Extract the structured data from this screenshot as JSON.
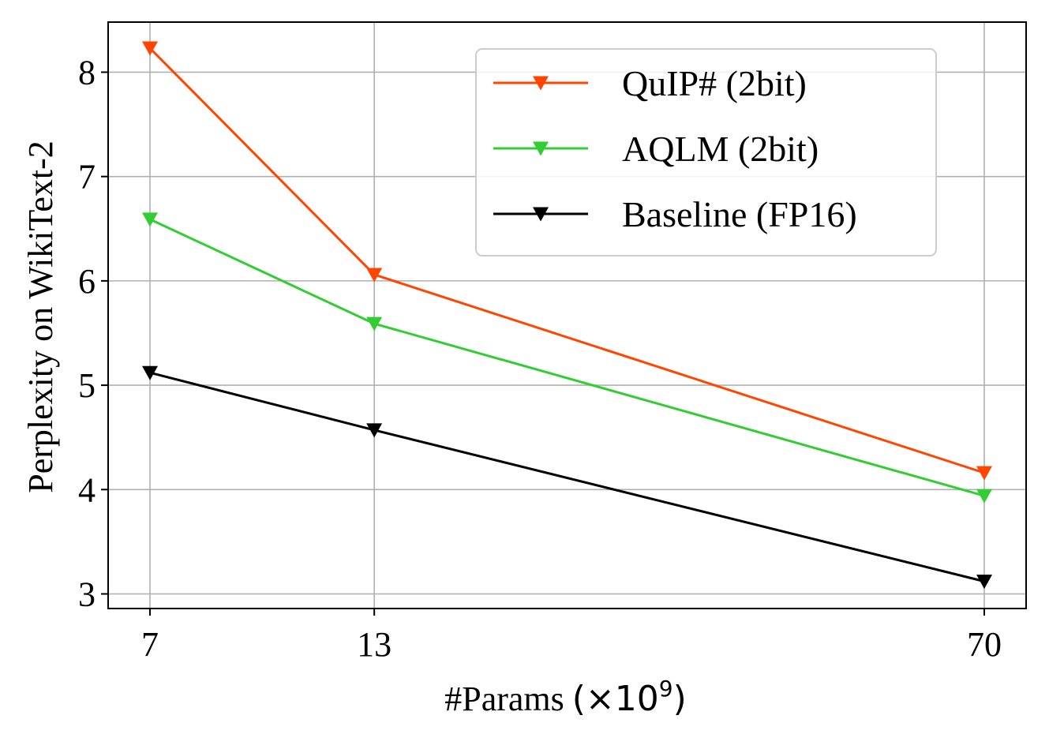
{
  "chart_data": {
    "type": "line",
    "title": "",
    "xlabel": "#Params",
    "xlabel_unit": "(×10",
    "xlabel_exp": "9",
    "xlabel_close": ")",
    "ylabel": "Perplexity on WikiText-2",
    "x": [
      7,
      13,
      70
    ],
    "x_tick_labels": [
      "7",
      "13",
      "70"
    ],
    "y_ticks": [
      3,
      4,
      5,
      6,
      7,
      8
    ],
    "y_tick_labels": [
      "3",
      "4",
      "5",
      "6",
      "7",
      "8"
    ],
    "ylim": [
      2.86,
      8.48
    ],
    "grid": true,
    "legend_position": "top-right",
    "marker": "triangle-down",
    "series": [
      {
        "name": "QuIP# (2bit)",
        "color": "#ff4500",
        "values": [
          8.23,
          6.06,
          4.16
        ]
      },
      {
        "name": "AQLM (2bit)",
        "color": "#32cd32",
        "values": [
          6.59,
          5.59,
          3.94
        ]
      },
      {
        "name": "Baseline (FP16)",
        "color": "#000000",
        "values": [
          5.12,
          4.57,
          3.12
        ]
      }
    ]
  }
}
